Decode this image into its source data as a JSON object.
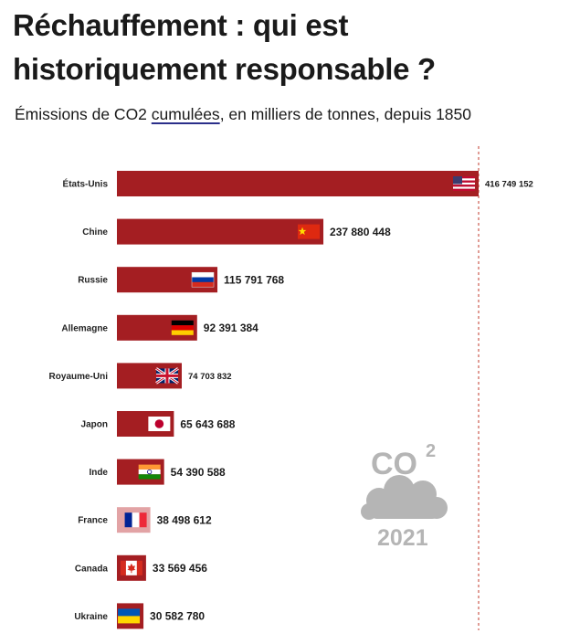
{
  "title_line1": "Réchauffement : qui est",
  "title_line2": "historiquement responsable ?",
  "subtitle_pre": "Émissions de CO2 ",
  "subtitle_underlined": "cumulées",
  "subtitle_post": ", en milliers de tonnes, depuis 1850",
  "logo": {
    "co2": "CO",
    "sup": "2",
    "year": "2021"
  },
  "colors": {
    "bar": "#a41e22",
    "bar_highlight": "#e2a3a5",
    "guide": "#c0392b",
    "logo": "#b5b5b5"
  },
  "chart_data": {
    "type": "bar",
    "orientation": "horizontal",
    "title": "Réchauffement : qui est historiquement responsable ?",
    "subtitle": "Émissions de CO2 cumulées, en milliers de tonnes, depuis 1850",
    "categories": [
      "États-Unis",
      "Chine",
      "Russie",
      "Allemagne",
      "Royaume-Uni",
      "Japon",
      "Inde",
      "France",
      "Canada",
      "Ukraine"
    ],
    "values": [
      416749152,
      237880448,
      115791768,
      92391384,
      74703832,
      65643688,
      54390588,
      38498612,
      33569456,
      30582780
    ],
    "value_labels": [
      "416 749 152",
      "237 880 448",
      "115 791 768",
      "92 391 384",
      "74 703 832",
      "65 643 688",
      "54 390 588",
      "38 498 612",
      "33 569 456",
      "30 582 780"
    ],
    "flags": [
      "us-flag-icon",
      "china-flag-icon",
      "russia-flag-icon",
      "germany-flag-icon",
      "uk-flag-icon",
      "japan-flag-icon",
      "india-flag-icon",
      "france-flag-icon",
      "canada-flag-icon",
      "ukraine-flag-icon"
    ],
    "highlight": "France",
    "xlim": [
      0,
      416749152
    ],
    "xlabel": "",
    "ylabel": "",
    "grid": false
  }
}
